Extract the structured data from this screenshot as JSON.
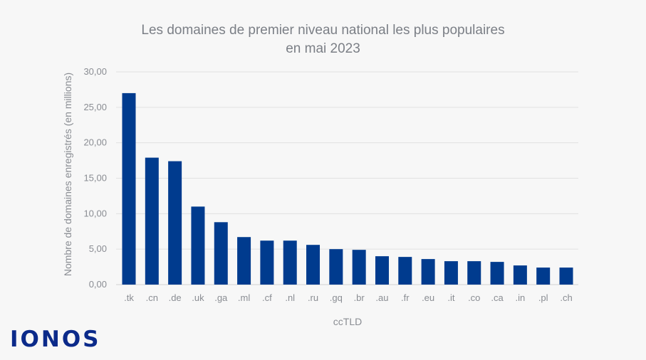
{
  "chart_data": {
    "type": "bar",
    "title_line1": "Les domaines de premier niveau national les plus populaires",
    "title_line2": "en mai 2023",
    "xlabel": "ccTLD",
    "ylabel": "Nombre de domaines enregistrés (en millions)",
    "ylim": [
      0,
      30
    ],
    "yticks": [
      "0,00",
      "5,00",
      "10,00",
      "15,00",
      "20,00",
      "25,00",
      "30,00"
    ],
    "grid": true,
    "bar_color": "#003b8e",
    "categories": [
      ".tk",
      ".cn",
      ".de",
      ".uk",
      ".ga",
      ".ml",
      ".cf",
      ".nl",
      ".ru",
      ".gq",
      ".br",
      ".au",
      ".fr",
      ".eu",
      ".it",
      ".co",
      ".ca",
      ".in",
      ".pl",
      ".ch"
    ],
    "values": [
      27.0,
      17.9,
      17.4,
      11.0,
      8.8,
      6.7,
      6.2,
      6.2,
      5.6,
      5.0,
      4.9,
      4.0,
      3.9,
      3.6,
      3.3,
      3.3,
      3.2,
      2.7,
      2.4,
      2.4
    ]
  },
  "branding": {
    "logo_text": "IONOS",
    "logo_color": "#0b2a8a"
  }
}
